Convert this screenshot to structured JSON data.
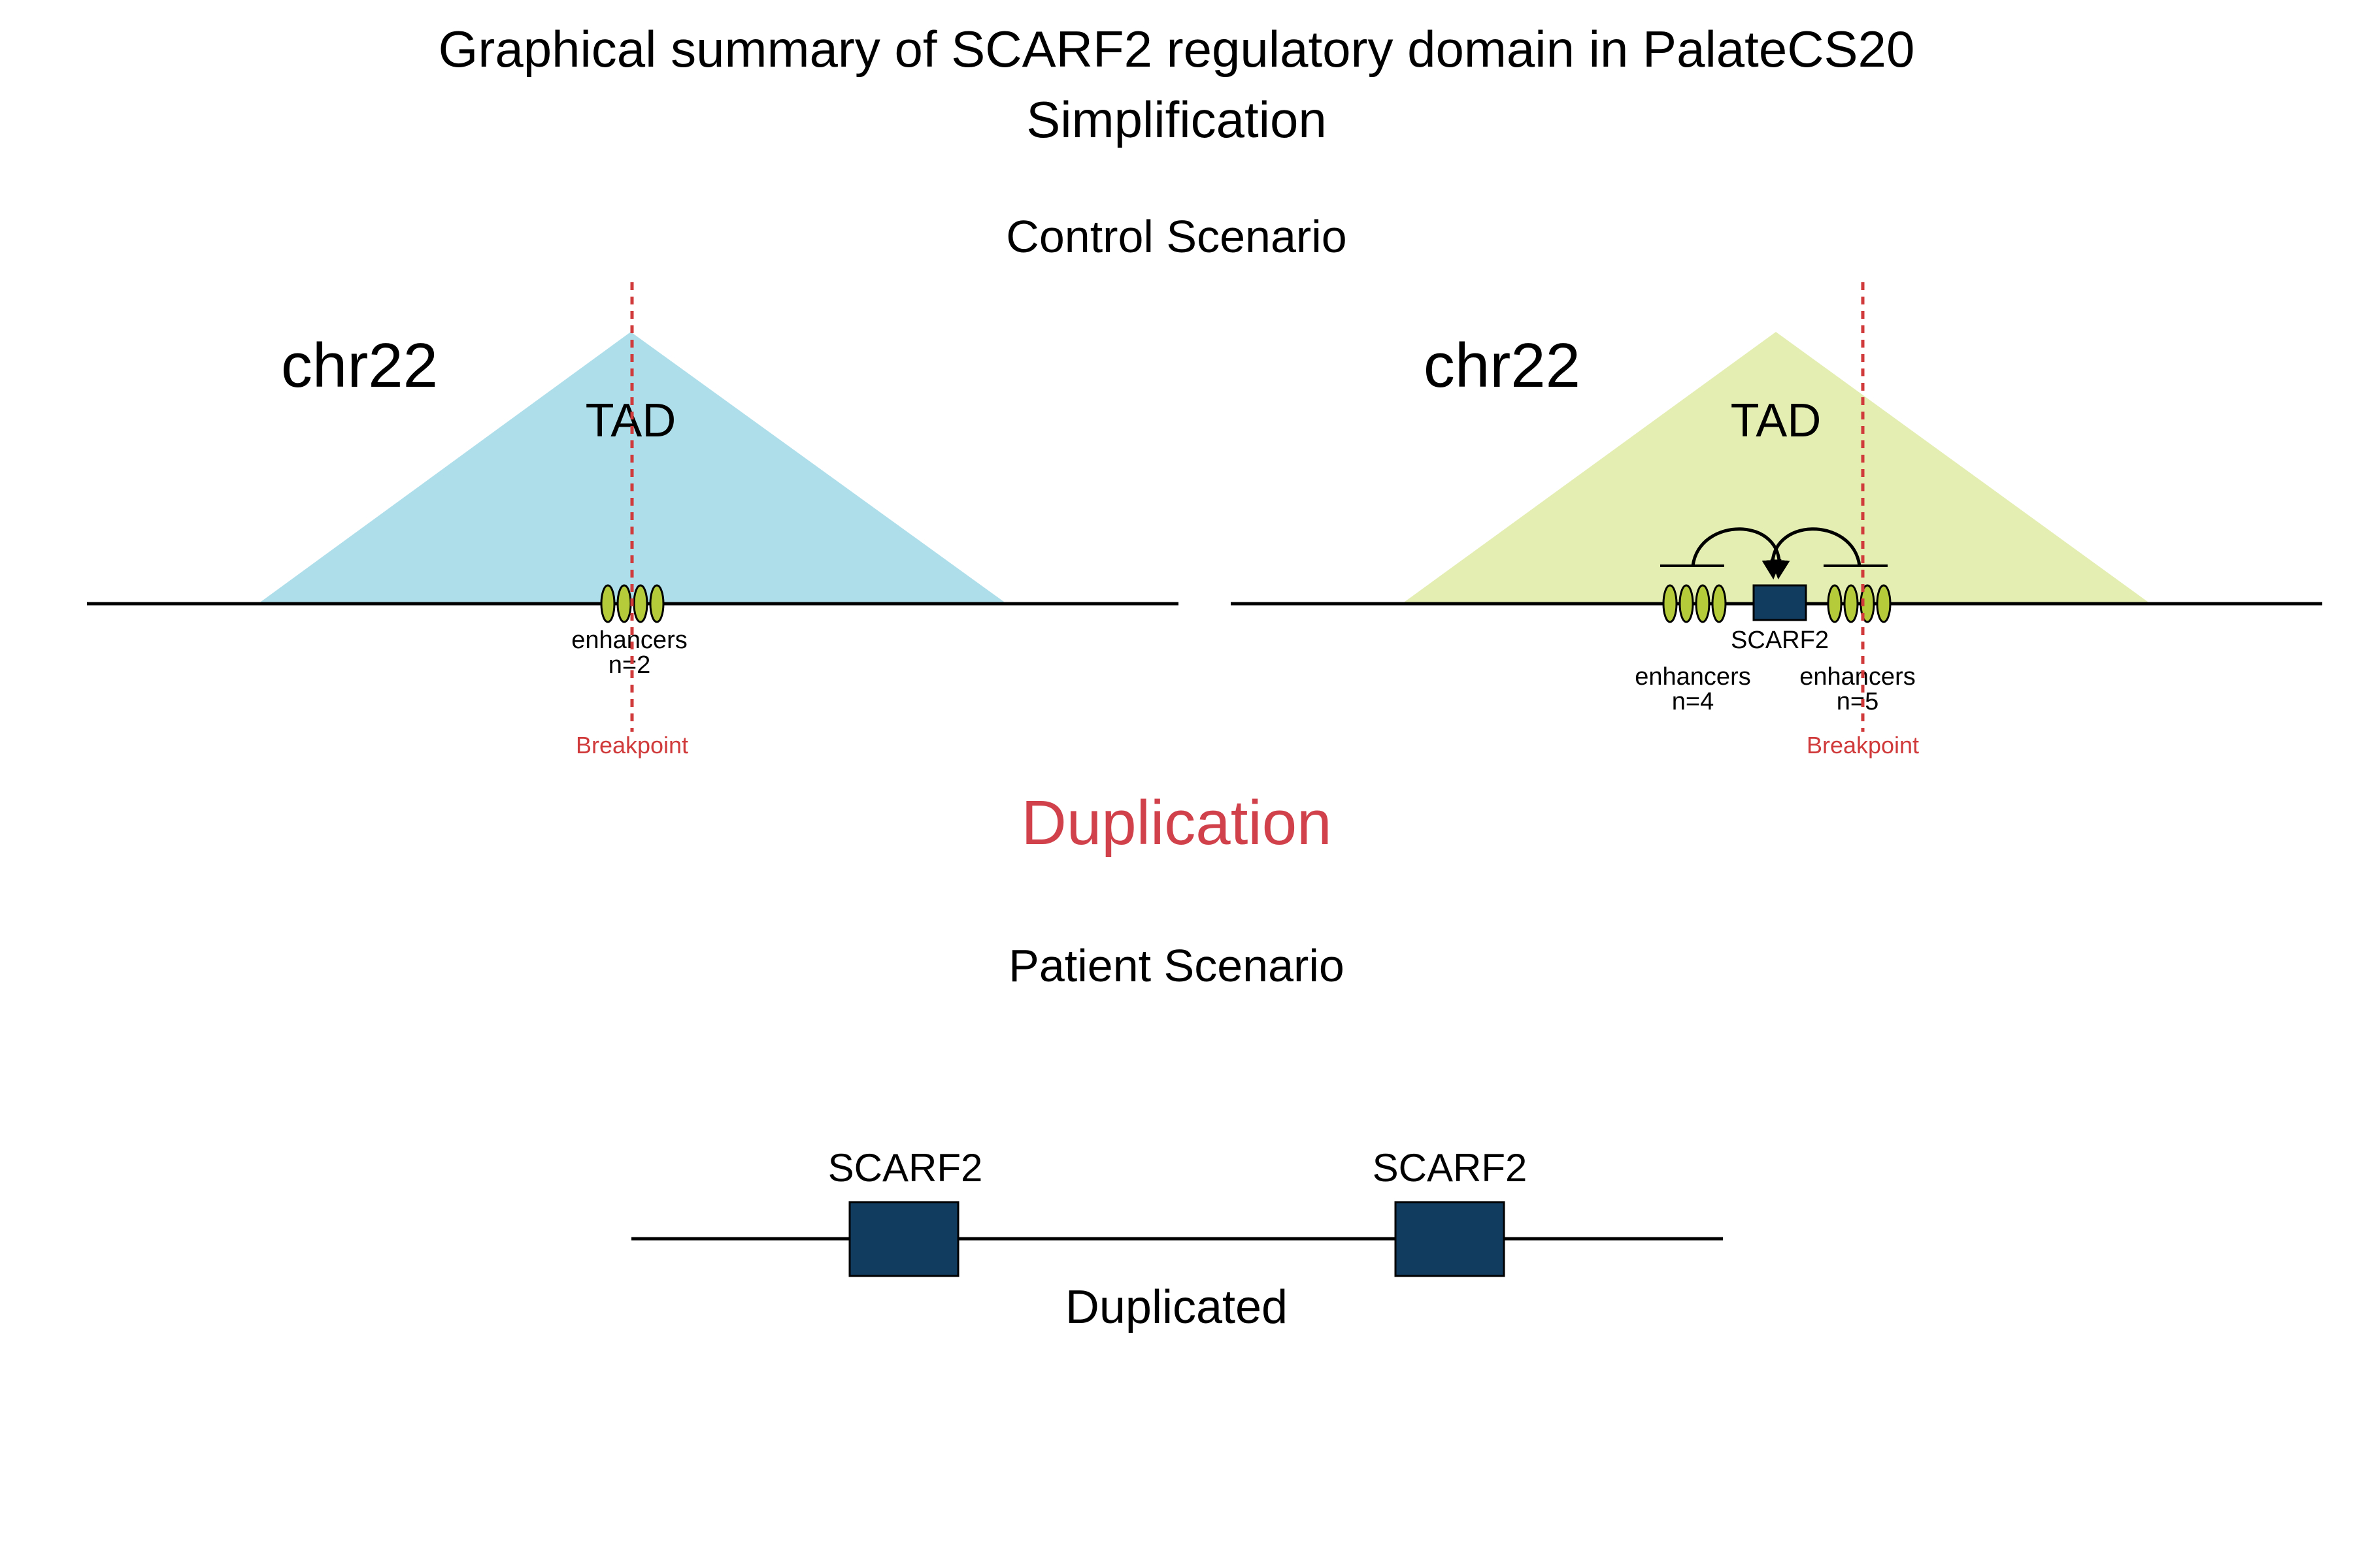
{
  "title": {
    "line1": "Graphical summary of SCARF2 regulatory domain in PalateCS20",
    "line2": "Simplification"
  },
  "control": {
    "heading": "Control Scenario",
    "left_panel": {
      "chrom": "chr22",
      "tad_label": "TAD",
      "tad_color": "#ADDEEA",
      "enhancer_label": "enhancers",
      "enhancer_count": "n=2",
      "breakpoint_label": "Breakpoint"
    },
    "right_panel": {
      "chrom": "chr22",
      "tad_label": "TAD",
      "tad_color": "#E4EDB2",
      "gene_label": "SCARF2",
      "left_enhancer_label": "enhancers",
      "left_enhancer_count": "n=4",
      "right_enhancer_label": "enhancers",
      "right_enhancer_count": "n=5",
      "breakpoint_label": "Breakpoint"
    }
  },
  "event": {
    "label": "Duplication",
    "color": "#D0414B"
  },
  "patient": {
    "heading": "Patient Scenario",
    "gene1_label": "SCARF2",
    "gene2_label": "SCARF2",
    "caption": "Duplicated"
  },
  "colors": {
    "gene": "#123B60",
    "enhancer": "#B5CB3A",
    "breakpoint": "#D03A3A",
    "line": "#000000"
  },
  "icons": {
    "enhancer": "ellipse",
    "gene": "filled-rectangle",
    "interaction": "curved-arrow"
  }
}
